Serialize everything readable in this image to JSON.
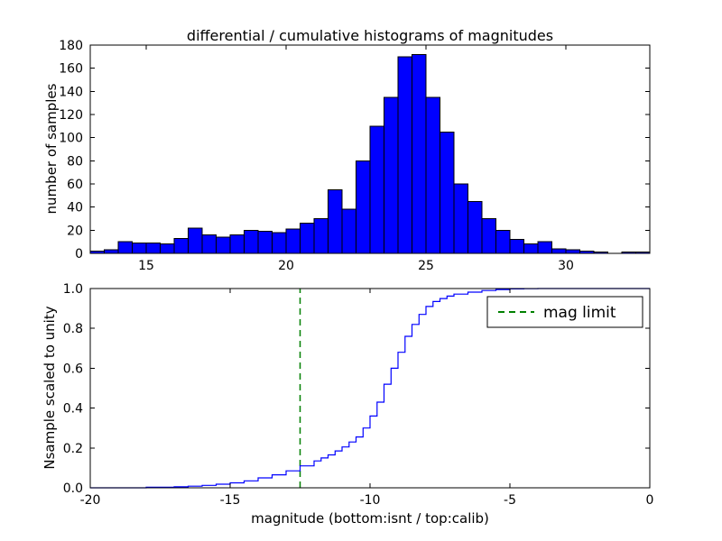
{
  "figure": {
    "title": "differential / cumulative histograms of magnitudes",
    "xlabel": "magnitude (bottom:isnt / top:calib)",
    "background": "#ffffff"
  },
  "chart_data": [
    {
      "id": "top-differential-histogram",
      "type": "bar",
      "subtype": "histogram",
      "title": "differential / cumulative histograms of magnitudes",
      "ylabel": "number of samples",
      "bin_start": 13.0,
      "bin_width": 0.5,
      "values": [
        2,
        3,
        10,
        9,
        9,
        8,
        13,
        22,
        16,
        14,
        16,
        20,
        19,
        18,
        21,
        26,
        30,
        55,
        38,
        80,
        110,
        135,
        170,
        172,
        135,
        105,
        60,
        45,
        30,
        20,
        12,
        8,
        10,
        4,
        3,
        2,
        1,
        0,
        1,
        1
      ],
      "xlim": [
        13,
        33
      ],
      "ylim": [
        0,
        180
      ],
      "xticks": [
        15,
        20,
        25,
        30
      ],
      "yticks": [
        0,
        20,
        40,
        60,
        80,
        100,
        120,
        140,
        160,
        180
      ],
      "bar_fill": "#0000ff",
      "bar_edge": "#000000",
      "grid": false
    },
    {
      "id": "bottom-cumulative-histogram",
      "type": "line",
      "subtype": "cumulative-step",
      "ylabel": "Nsample scaled to unity",
      "xlabel": "magnitude (bottom:isnt / top:calib)",
      "xlim": [
        -20,
        0
      ],
      "ylim": [
        0.0,
        1.0
      ],
      "xticks": [
        -20,
        -15,
        -10,
        -5,
        0
      ],
      "yticks": [
        0.0,
        0.2,
        0.4,
        0.6,
        0.8,
        1.0
      ],
      "line_color": "#0000ff",
      "steps": [
        [
          -18.0,
          0.003
        ],
        [
          -17.0,
          0.005
        ],
        [
          -16.5,
          0.008
        ],
        [
          -16.0,
          0.012
        ],
        [
          -15.5,
          0.018
        ],
        [
          -15.0,
          0.025
        ],
        [
          -14.5,
          0.035
        ],
        [
          -14.0,
          0.05
        ],
        [
          -13.5,
          0.065
        ],
        [
          -13.0,
          0.085
        ],
        [
          -12.5,
          0.11
        ],
        [
          -12.0,
          0.135
        ],
        [
          -11.75,
          0.15
        ],
        [
          -11.5,
          0.165
        ],
        [
          -11.25,
          0.185
        ],
        [
          -11.0,
          0.205
        ],
        [
          -10.75,
          0.23
        ],
        [
          -10.5,
          0.255
        ],
        [
          -10.25,
          0.3
        ],
        [
          -10.0,
          0.36
        ],
        [
          -9.75,
          0.43
        ],
        [
          -9.5,
          0.52
        ],
        [
          -9.25,
          0.6
        ],
        [
          -9.0,
          0.68
        ],
        [
          -8.75,
          0.76
        ],
        [
          -8.5,
          0.82
        ],
        [
          -8.25,
          0.87
        ],
        [
          -8.0,
          0.91
        ],
        [
          -7.75,
          0.935
        ],
        [
          -7.5,
          0.95
        ],
        [
          -7.25,
          0.962
        ],
        [
          -7.0,
          0.972
        ],
        [
          -6.5,
          0.982
        ],
        [
          -6.0,
          0.99
        ],
        [
          -5.5,
          0.995
        ],
        [
          -5.0,
          0.998
        ],
        [
          -4.5,
          0.999
        ],
        [
          -4.0,
          1.0
        ],
        [
          0.0,
          1.0
        ]
      ],
      "vline": {
        "x": -12.5,
        "color": "#008000",
        "style": "dashed",
        "label": "mag limit"
      },
      "legend": {
        "position": "upper right",
        "entries": [
          {
            "label": "mag limit",
            "color": "#008000",
            "style": "dashed"
          }
        ]
      },
      "grid": false
    }
  ]
}
